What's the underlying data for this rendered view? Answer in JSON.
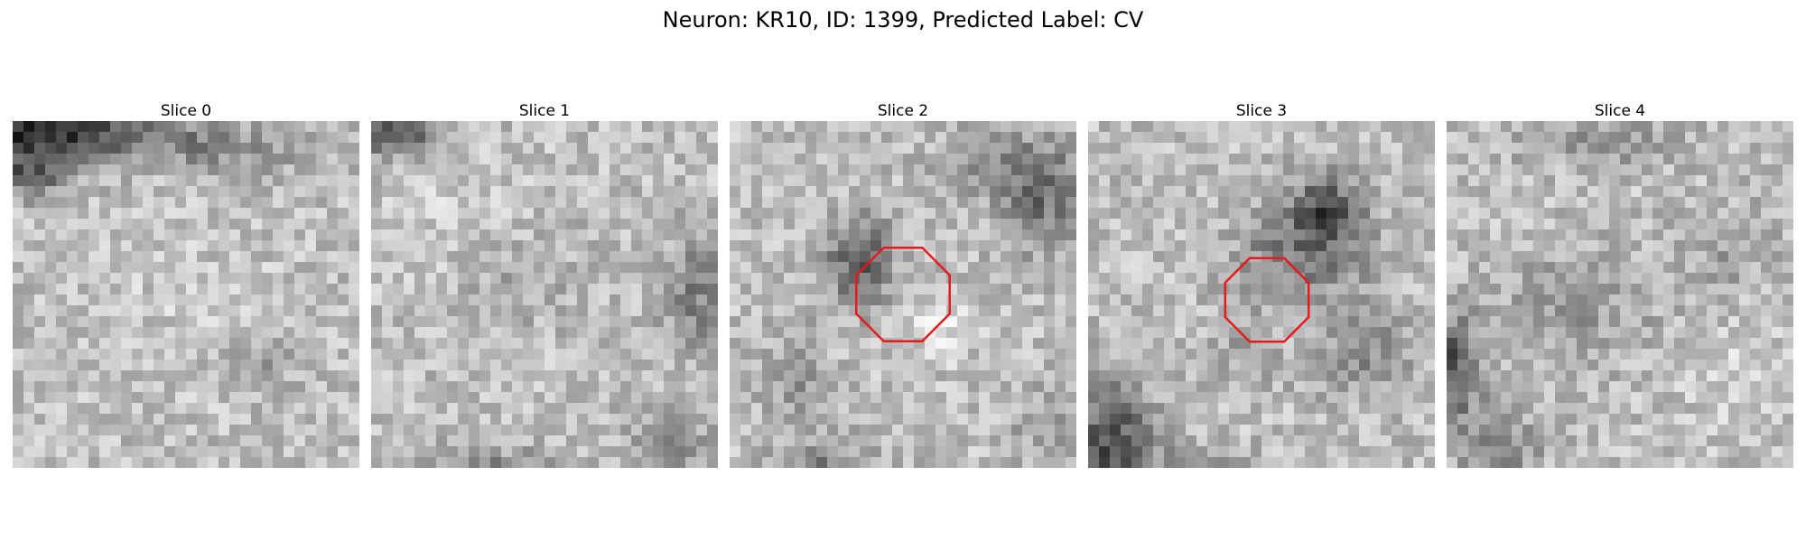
{
  "figure": {
    "title": "Neuron: KR10, ID: 1399, Predicted Label: CV",
    "panels": [
      {
        "title": "Slice 0",
        "has_roi": false
      },
      {
        "title": "Slice 1",
        "has_roi": false
      },
      {
        "title": "Slice 2",
        "has_roi": true
      },
      {
        "title": "Slice 3",
        "has_roi": true
      },
      {
        "title": "Slice 4",
        "has_roi": false
      }
    ],
    "roi_color": "#e41a1c",
    "colormap": "grayscale"
  }
}
